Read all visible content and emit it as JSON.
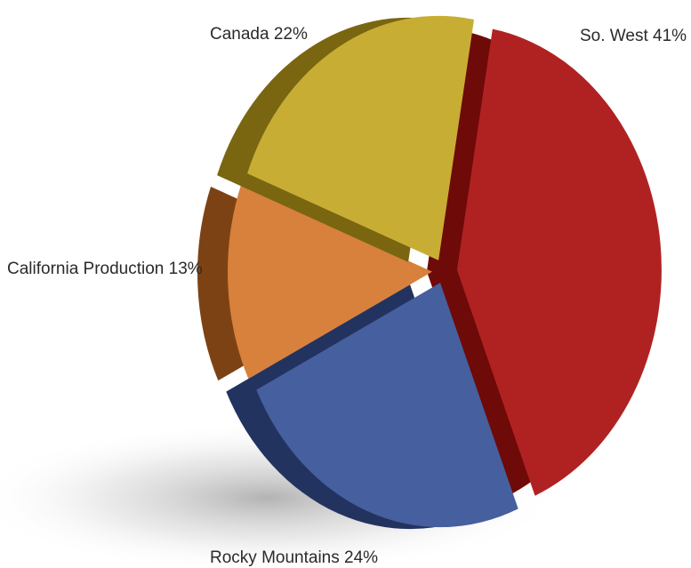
{
  "chart_data": {
    "type": "pie",
    "style": "3d-exploded",
    "slices": [
      {
        "name": "So. West",
        "value": 41,
        "label": "So. West 41%",
        "color": "#b02222",
        "side_color": "#6e0a08"
      },
      {
        "name": "Rocky Mountains",
        "value": 24,
        "label": "Rocky Mountains 24%",
        "color": "#465f9e",
        "side_color": "#23335f"
      },
      {
        "name": "California Production",
        "value": 13,
        "label": "California Production 13%",
        "color": "#d7813c",
        "side_color": "#7d4214"
      },
      {
        "name": "Canada",
        "value": 22,
        "label": "Canada 22%",
        "color": "#c8ad35",
        "side_color": "#7a6610"
      }
    ]
  }
}
